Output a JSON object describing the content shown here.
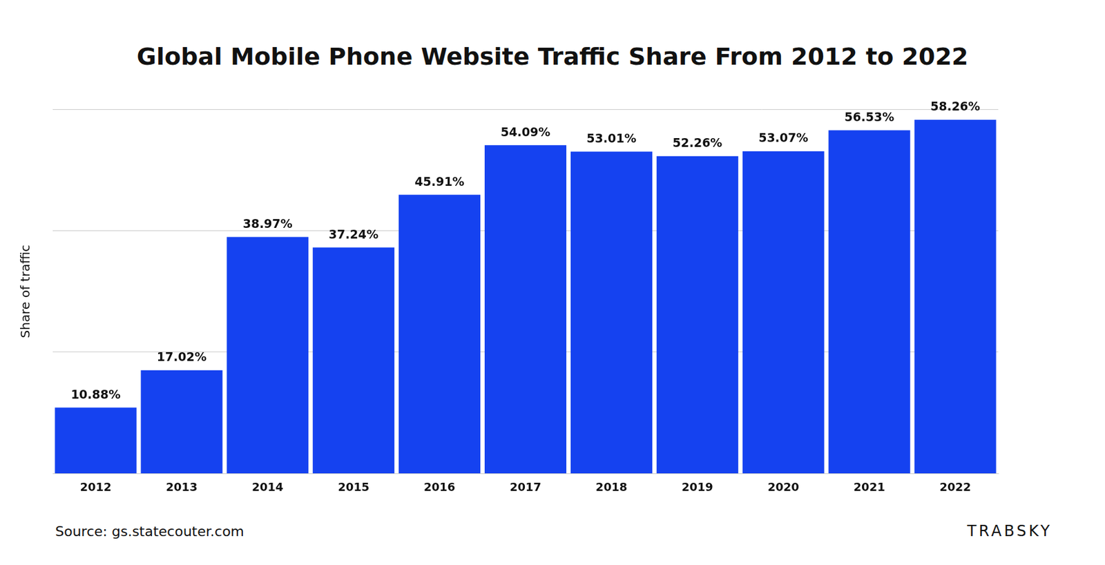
{
  "chart_data": {
    "type": "bar",
    "title": "Global Mobile Phone Website Traffic Share From 2012 to 2022",
    "y_label": "Share of traffic",
    "categories": [
      "2012",
      "2013",
      "2014",
      "2015",
      "2016",
      "2017",
      "2018",
      "2019",
      "2020",
      "2021",
      "2022"
    ],
    "values": [
      10.88,
      17.02,
      38.97,
      37.24,
      45.91,
      54.09,
      53.01,
      52.26,
      53.07,
      56.53,
      58.26
    ],
    "value_labels": [
      "10.88%",
      "17.02%",
      "38.97%",
      "37.24%",
      "45.91%",
      "54.09%",
      "53.01%",
      "52.26%",
      "53.07%",
      "56.53%",
      "58.26%"
    ],
    "color": "#1542f0",
    "ylim": [
      0,
      60
    ],
    "yticks": [
      0,
      20,
      40,
      60
    ],
    "grid": true,
    "data_labels": true,
    "tick_labels": "x",
    "annotations": [
      "Source: gs.statecouter.com",
      "TRABSKY"
    ]
  }
}
